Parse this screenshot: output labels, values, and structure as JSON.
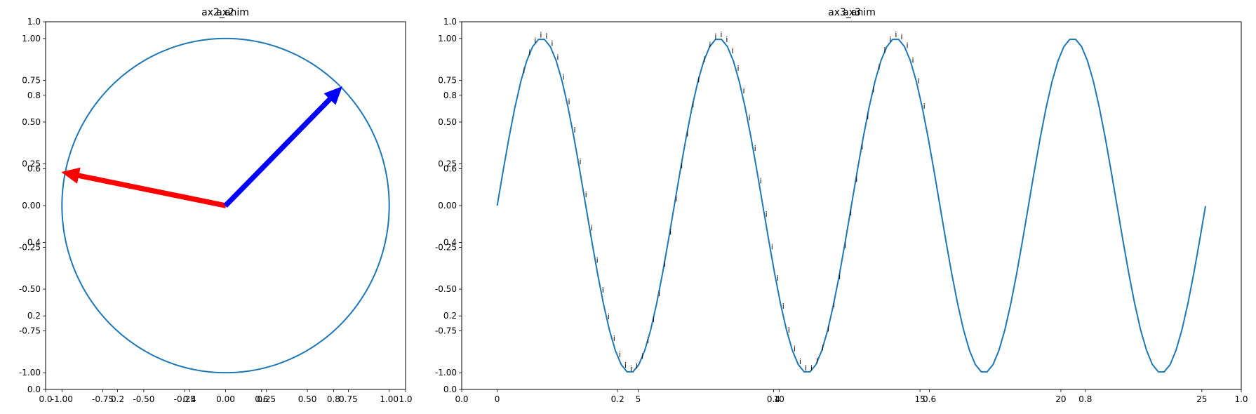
{
  "chart_data": [
    {
      "type": "line",
      "title": "ax2",
      "title_overlay": "ax2_anim",
      "axes_frame": {
        "xticks": [
          0.0,
          0.2,
          0.4,
          0.6,
          0.8,
          1.0
        ],
        "yticks": [
          0.0,
          0.2,
          0.4,
          0.6,
          0.8,
          1.0
        ],
        "xlim": [
          0,
          1
        ],
        "ylim": [
          0,
          1
        ]
      },
      "xlim": [
        -1.1,
        1.1
      ],
      "ylim": [
        -1.1,
        1.1
      ],
      "xticks": [
        -1.0,
        -0.75,
        -0.5,
        -0.25,
        0.0,
        0.25,
        0.5,
        0.75,
        1.0
      ],
      "yticks": [
        -1.0,
        -0.75,
        -0.5,
        -0.25,
        0.0,
        0.25,
        0.5,
        0.75,
        1.0
      ],
      "series": [
        {
          "kind": "circle",
          "center": [
            0,
            0
          ],
          "radius": 1.0,
          "color": "#1f77b4"
        }
      ],
      "arrows": [
        {
          "from": [
            0,
            0
          ],
          "to": [
            -1.0,
            0.2
          ],
          "color": "#ff0000"
        },
        {
          "from": [
            0,
            0
          ],
          "to": [
            0.71,
            0.71
          ],
          "color": "#0000ff"
        }
      ]
    },
    {
      "type": "line",
      "title": "ax3",
      "title_overlay": "ax3_anim",
      "axes_frame": {
        "xticks": [
          0.0,
          0.2,
          0.4,
          0.6,
          0.8,
          1.0
        ],
        "yticks": [
          0.0,
          0.2,
          0.4,
          0.6,
          0.8,
          1.0
        ],
        "xlim": [
          0,
          1
        ],
        "ylim": [
          0,
          1
        ]
      },
      "xlim": [
        -1.26,
        26.4
      ],
      "ylim": [
        -1.1,
        1.1
      ],
      "xticks": [
        0,
        5,
        10,
        15,
        20,
        25
      ],
      "yticks": [
        -1.0,
        -0.75,
        -0.5,
        -0.25,
        0.0,
        0.25,
        0.5,
        0.75,
        1.0
      ],
      "series": [
        {
          "kind": "sine",
          "x_start": 0,
          "x_end": 25.13,
          "points": 121,
          "color": "#1f77b4"
        }
      ],
      "annotations": {
        "text": "i",
        "x_start": 0.9,
        "x_end": 15.2,
        "step": 0.2
      }
    }
  ]
}
